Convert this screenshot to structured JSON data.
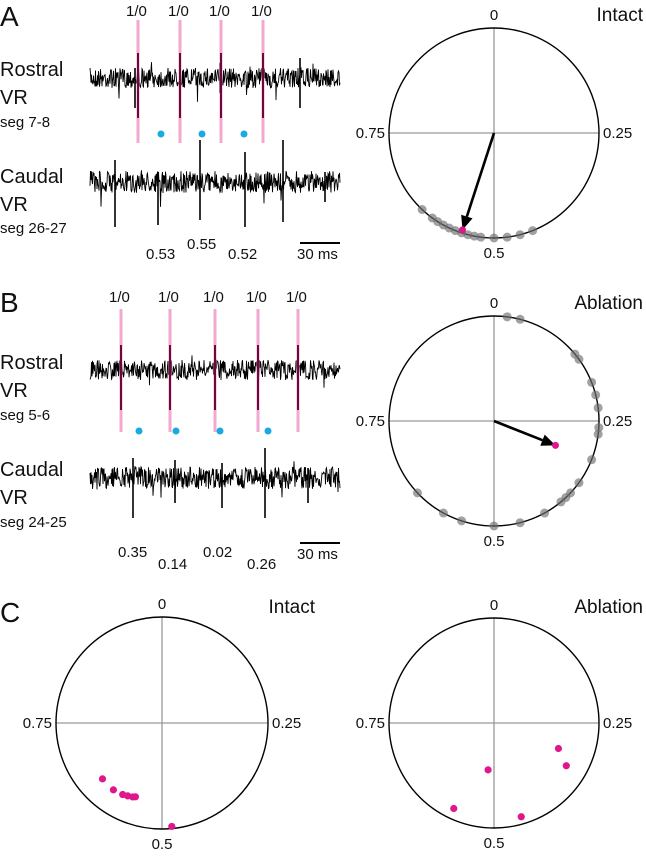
{
  "panels": {
    "A": {
      "label": "A",
      "rostral": {
        "line1": "Rostral",
        "line2": "VR",
        "seg": "seg 7-8"
      },
      "caudal": {
        "line1": "Caudal",
        "line2": "VR",
        "seg": "seg 26-27"
      },
      "ratio_labels": [
        "1/0",
        "1/0",
        "1/0",
        "1/0"
      ],
      "phase_values": [
        "0.53",
        "0.55",
        "0.52"
      ],
      "scale_bar": "30 ms"
    },
    "B": {
      "label": "B",
      "rostral": {
        "line1": "Rostral",
        "line2": "VR",
        "seg": "seg 5-6"
      },
      "caudal": {
        "line1": "Caudal",
        "line2": "VR",
        "seg": "seg 24-25"
      },
      "ratio_labels": [
        "1/0",
        "1/0",
        "1/0",
        "1/0",
        "1/0"
      ],
      "phase_values": [
        "0.35",
        "0.14",
        "0.02",
        "0.26"
      ],
      "scale_bar": "30 ms"
    },
    "C": {
      "label": "C"
    }
  },
  "colors": {
    "pink": "#e0168c",
    "pink_line": "#f29ac8",
    "cyan": "#1aa9e0",
    "gray_dot": "#6f6f6f"
  },
  "chart_data": [
    {
      "type": "scatter",
      "subtype": "polar-phase",
      "title": "Intact",
      "panel": "A",
      "tick_labels": {
        "top": "0",
        "right": "0.25",
        "bottom": "0.5",
        "left": "0.75"
      },
      "points_phase": [
        0.44,
        0.46,
        0.48,
        0.5,
        0.52,
        0.53,
        0.54,
        0.55,
        0.56,
        0.57,
        0.58,
        0.59,
        0.6,
        0.62
      ],
      "mean_vector": {
        "phase": 0.55,
        "r": 0.97
      }
    },
    {
      "type": "scatter",
      "subtype": "polar-phase",
      "title": "Ablation",
      "panel": "B",
      "tick_labels": {
        "top": "0",
        "right": "0.25",
        "bottom": "0.5",
        "left": "0.75"
      },
      "points_phase": [
        0.02,
        0.04,
        0.14,
        0.15,
        0.19,
        0.21,
        0.23,
        0.26,
        0.27,
        0.31,
        0.35,
        0.37,
        0.38,
        0.39,
        0.42,
        0.46,
        0.5,
        0.55,
        0.58,
        0.63
      ],
      "mean_vector": {
        "phase": 0.31,
        "r": 0.63
      }
    },
    {
      "type": "scatter",
      "subtype": "polar-phase",
      "title": "Intact",
      "panel": "C",
      "tick_labels": {
        "top": "0",
        "right": "0.25",
        "bottom": "0.5",
        "left": "0.75"
      },
      "points": [
        {
          "phase": 0.63,
          "r": 0.77
        },
        {
          "phase": 0.6,
          "r": 0.78
        },
        {
          "phase": 0.58,
          "r": 0.77
        },
        {
          "phase": 0.57,
          "r": 0.76
        },
        {
          "phase": 0.56,
          "r": 0.75
        },
        {
          "phase": 0.555,
          "r": 0.74
        },
        {
          "phase": 0.485,
          "r": 0.98
        }
      ]
    },
    {
      "type": "scatter",
      "subtype": "polar-phase",
      "title": "Ablation",
      "panel": "C",
      "tick_labels": {
        "top": "0",
        "right": "0.25",
        "bottom": "0.5",
        "left": "0.75"
      },
      "points": [
        {
          "phase": 0.31,
          "r": 0.66
        },
        {
          "phase": 0.335,
          "r": 0.8
        },
        {
          "phase": 0.52,
          "r": 0.45
        },
        {
          "phase": 0.57,
          "r": 0.9
        },
        {
          "phase": 0.455,
          "r": 0.93
        }
      ]
    }
  ]
}
